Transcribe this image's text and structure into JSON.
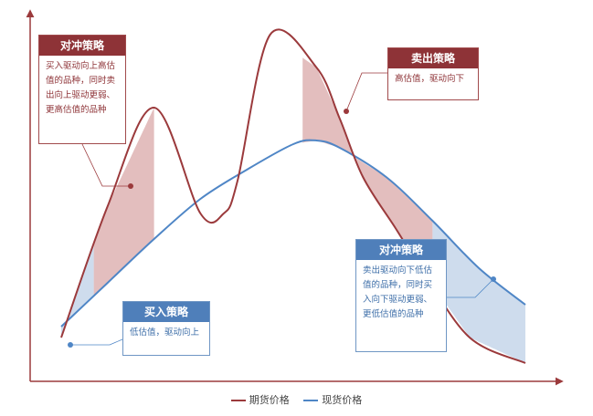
{
  "callouts": {
    "hedge_buy": {
      "title": "对冲策略",
      "text": "买入驱动向上高估值的品种，同时卖出向上驱动更弱、更高估值的品种"
    },
    "sell": {
      "title": "卖出策略",
      "text": "高估值，驱动向下"
    },
    "buy": {
      "title": "买入策略",
      "text": "低估值，驱动向上"
    },
    "hedge_sell": {
      "title": "对冲策略",
      "text": "卖出驱动向下低估值的品种，同时买入向下驱动更弱、更低估值的品种"
    }
  },
  "legend": {
    "futures": "期货价格",
    "spot": "现货价格"
  },
  "colors": {
    "futures": "#9b3a3c",
    "spot": "#4f86c6",
    "red_fill": "#deb3b3",
    "blue_fill": "#c5d6ea",
    "axis": "#9b3a3c"
  },
  "chart_data": {
    "type": "line",
    "series": [
      {
        "name": "期货价格",
        "x": [
          0,
          0.1,
          0.2,
          0.3,
          0.35,
          0.38,
          0.45,
          0.55,
          0.6,
          0.65,
          0.72,
          0.78,
          0.88,
          1.0
        ],
        "y": [
          0.12,
          0.48,
          0.75,
          0.46,
          0.46,
          0.55,
          0.95,
          0.86,
          0.72,
          0.56,
          0.42,
          0.3,
          0.12,
          0.05
        ]
      },
      {
        "name": "现货价格",
        "x": [
          0,
          0.1,
          0.2,
          0.3,
          0.4,
          0.5,
          0.55,
          0.6,
          0.7,
          0.8,
          0.9,
          1.0
        ],
        "y": [
          0.15,
          0.27,
          0.39,
          0.5,
          0.58,
          0.65,
          0.66,
          0.64,
          0.56,
          0.44,
          0.31,
          0.21
        ]
      }
    ]
  }
}
